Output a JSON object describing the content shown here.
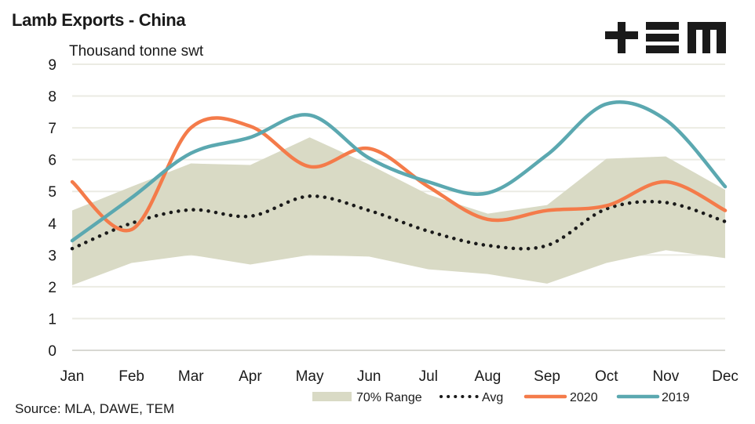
{
  "chart_data": {
    "type": "line",
    "title": "Lamb Exports - China",
    "subtitle": "Thousand tonne swt",
    "xlabel": "",
    "ylabel": "Thousand tonne swt",
    "ylim": [
      0,
      9
    ],
    "yticks": [
      "0",
      "1",
      "2",
      "3",
      "4",
      "5",
      "6",
      "7",
      "8",
      "9"
    ],
    "grid": true,
    "legend_position": "bottom",
    "categories": [
      "Jan",
      "Feb",
      "Mar",
      "Apr",
      "May",
      "Jun",
      "Jul",
      "Aug",
      "Sep",
      "Oct",
      "Nov",
      "Dec"
    ],
    "band": {
      "name": "70% Range",
      "color": "#D9DAC5",
      "upper": [
        4.4,
        5.15,
        5.88,
        5.83,
        6.7,
        5.85,
        4.9,
        4.3,
        4.57,
        6.03,
        6.1,
        5.05
      ],
      "lower": [
        2.05,
        2.75,
        3.0,
        2.7,
        3.0,
        2.95,
        2.55,
        2.4,
        2.1,
        2.75,
        3.15,
        2.9
      ]
    },
    "series": [
      {
        "name": "Avg",
        "style": "dotted",
        "color": "#1a1a1a",
        "values": [
          3.2,
          4.0,
          4.42,
          4.22,
          4.85,
          4.4,
          3.75,
          3.3,
          3.3,
          4.45,
          4.65,
          4.05
        ]
      },
      {
        "name": "2020",
        "style": "solid",
        "color": "#F47B4A",
        "values": [
          5.3,
          3.8,
          7.0,
          7.05,
          5.78,
          6.35,
          5.15,
          4.12,
          4.4,
          4.55,
          5.3,
          4.4
        ]
      },
      {
        "name": "2019",
        "style": "solid",
        "color": "#5BA8B0",
        "values": [
          3.45,
          4.8,
          6.2,
          6.7,
          7.4,
          6.05,
          5.3,
          4.95,
          6.15,
          7.75,
          7.25,
          5.15
        ]
      }
    ],
    "legend": [
      "70% Range",
      "Avg",
      "2020",
      "2019"
    ],
    "source": "Source: MLA, DAWE, TEM"
  },
  "logo": {
    "name": "TEM logo",
    "icon": "tem-logo-icon"
  },
  "colors": {
    "grid": "#EBEBE3",
    "text": "#1a1a1a"
  }
}
